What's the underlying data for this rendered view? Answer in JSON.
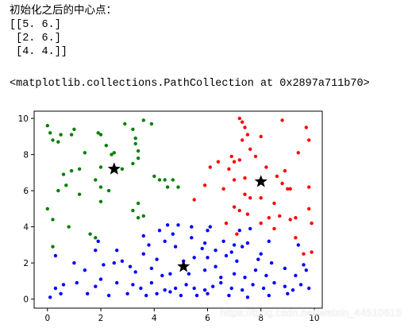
{
  "stdout": {
    "lines": [
      "初始化之后的中心点：",
      "[[5. 6.]",
      " [2. 6.]",
      " [4. 4.]]"
    ]
  },
  "repr_text": "<matplotlib.collections.PathCollection at 0x2897a711b70>",
  "watermark": "https://blog.csdn.net/weixin_44510615",
  "colors": {
    "green": "#008000",
    "red": "#ff0000",
    "blue": "#0000ff",
    "centroid": "#000000",
    "axes": "#000000"
  },
  "chart_data": {
    "type": "scatter",
    "title": "",
    "xlabel": "",
    "ylabel": "",
    "xlim": [
      -0.5,
      10.3
    ],
    "ylim": [
      -0.5,
      10.4
    ],
    "xticks": [
      0,
      2,
      4,
      6,
      8,
      10
    ],
    "yticks": [
      0,
      2,
      4,
      6,
      8,
      10
    ],
    "grid": false,
    "series": [
      {
        "color": "#008000",
        "points": [
          [
            0.0,
            9.6
          ],
          [
            0.1,
            9.2
          ],
          [
            0.2,
            8.8
          ],
          [
            0.4,
            8.7
          ],
          [
            0.5,
            9.1
          ],
          [
            0.9,
            9.1
          ],
          [
            1.0,
            9.4
          ],
          [
            1.4,
            8.1
          ],
          [
            1.9,
            9.2
          ],
          [
            2.0,
            9.1
          ],
          [
            2.2,
            8.5
          ],
          [
            2.4,
            8.0
          ],
          [
            2.5,
            8.1
          ],
          [
            2.9,
            9.7
          ],
          [
            3.2,
            9.4
          ],
          [
            3.3,
            8.9
          ],
          [
            3.4,
            8.2
          ],
          [
            3.6,
            9.9
          ],
          [
            3.9,
            9.7
          ],
          [
            3.3,
            8.6
          ],
          [
            3.4,
            7.8
          ],
          [
            0.6,
            6.9
          ],
          [
            0.9,
            7.1
          ],
          [
            1.2,
            7.2
          ],
          [
            2.0,
            7.3
          ],
          [
            2.8,
            7.2
          ],
          [
            3.2,
            7.5
          ],
          [
            0.4,
            6.0
          ],
          [
            0.7,
            6.3
          ],
          [
            1.2,
            5.8
          ],
          [
            1.8,
            6.6
          ],
          [
            2.0,
            6.2
          ],
          [
            2.3,
            6.0
          ],
          [
            2.0,
            5.4
          ],
          [
            3.4,
            5.3
          ],
          [
            4.0,
            6.8
          ],
          [
            4.2,
            6.6
          ],
          [
            4.4,
            6.6
          ],
          [
            4.5,
            6.2
          ],
          [
            4.7,
            6.6
          ],
          [
            4.9,
            6.2
          ],
          [
            3.2,
            4.9
          ],
          [
            3.4,
            4.5
          ],
          [
            3.6,
            4.6
          ],
          [
            0.0,
            5.0
          ],
          [
            0.2,
            4.4
          ],
          [
            0.8,
            4.0
          ],
          [
            1.6,
            3.6
          ],
          [
            1.8,
            3.4
          ],
          [
            0.2,
            2.9
          ]
        ]
      },
      {
        "color": "#ff0000",
        "points": [
          [
            7.2,
            10.0
          ],
          [
            7.3,
            9.8
          ],
          [
            7.4,
            9.5
          ],
          [
            7.5,
            9.1
          ],
          [
            8.0,
            9.0
          ],
          [
            8.8,
            9.9
          ],
          [
            9.7,
            9.5
          ],
          [
            9.8,
            8.8
          ],
          [
            7.3,
            8.8
          ],
          [
            7.6,
            8.3
          ],
          [
            9.4,
            8.1
          ],
          [
            6.4,
            7.6
          ],
          [
            6.9,
            7.9
          ],
          [
            7.0,
            7.6
          ],
          [
            7.2,
            7.7
          ],
          [
            7.8,
            7.9
          ],
          [
            8.2,
            7.3
          ],
          [
            8.9,
            7.1
          ],
          [
            6.1,
            7.3
          ],
          [
            6.8,
            7.2
          ],
          [
            7.0,
            6.6
          ],
          [
            7.4,
            6.7
          ],
          [
            8.6,
            6.8
          ],
          [
            8.8,
            6.4
          ],
          [
            9.0,
            6.1
          ],
          [
            9.1,
            6.1
          ],
          [
            9.8,
            6.2
          ],
          [
            5.9,
            6.3
          ],
          [
            6.6,
            6.1
          ],
          [
            7.4,
            5.8
          ],
          [
            7.6,
            5.6
          ],
          [
            8.0,
            5.6
          ],
          [
            8.5,
            5.3
          ],
          [
            9.8,
            5.0
          ],
          [
            5.5,
            5.5
          ],
          [
            7.0,
            5.1
          ],
          [
            7.2,
            4.9
          ],
          [
            7.5,
            4.7
          ],
          [
            8.3,
            4.5
          ],
          [
            8.7,
            4.6
          ],
          [
            9.1,
            4.4
          ],
          [
            9.3,
            4.5
          ],
          [
            6.7,
            4.2
          ],
          [
            8.0,
            4.2
          ],
          [
            9.9,
            4.2
          ],
          [
            7.1,
            3.6
          ],
          [
            8.5,
            3.9
          ],
          [
            9.3,
            3.4
          ],
          [
            9.6,
            2.5
          ],
          [
            9.9,
            2.6
          ]
        ]
      },
      {
        "color": "#0000ff",
        "points": [
          [
            4.5,
            4.1
          ],
          [
            4.9,
            4.1
          ],
          [
            5.4,
            4.0
          ],
          [
            6.0,
            3.8
          ],
          [
            6.1,
            4.0
          ],
          [
            7.2,
            3.8
          ],
          [
            7.6,
            3.9
          ],
          [
            3.6,
            3.5
          ],
          [
            4.2,
            3.8
          ],
          [
            4.7,
            3.6
          ],
          [
            5.4,
            3.4
          ],
          [
            6.6,
            3.2
          ],
          [
            5.9,
            3.1
          ],
          [
            7.0,
            3.0
          ],
          [
            7.5,
            3.1
          ],
          [
            8.3,
            3.2
          ],
          [
            0.3,
            2.4
          ],
          [
            1.9,
            3.2
          ],
          [
            3.8,
            3.0
          ],
          [
            4.4,
            3.2
          ],
          [
            4.8,
            2.9
          ],
          [
            5.8,
            2.8
          ],
          [
            6.3,
            2.7
          ],
          [
            6.9,
            2.6
          ],
          [
            7.3,
            2.9
          ],
          [
            8.0,
            2.5
          ],
          [
            9.4,
            3.0
          ],
          [
            1.8,
            2.7
          ],
          [
            2.6,
            2.7
          ],
          [
            3.6,
            2.5
          ],
          [
            4.1,
            2.2
          ],
          [
            5.1,
            2.1
          ],
          [
            5.5,
            2.3
          ],
          [
            6.0,
            2.3
          ],
          [
            6.7,
            2.4
          ],
          [
            7.1,
            2.1
          ],
          [
            7.9,
            2.2
          ],
          [
            8.4,
            2.0
          ],
          [
            9.6,
            1.9
          ],
          [
            1.0,
            2.0
          ],
          [
            1.4,
            1.6
          ],
          [
            2.1,
            1.9
          ],
          [
            2.5,
            2.0
          ],
          [
            2.8,
            2.1
          ],
          [
            3.1,
            1.8
          ],
          [
            3.3,
            1.5
          ],
          [
            3.9,
            1.7
          ],
          [
            4.3,
            1.3
          ],
          [
            4.6,
            1.4
          ],
          [
            5.3,
            1.4
          ],
          [
            5.9,
            1.6
          ],
          [
            6.3,
            1.8
          ],
          [
            6.5,
            1.2
          ],
          [
            7.0,
            1.4
          ],
          [
            7.4,
            1.2
          ],
          [
            7.8,
            1.6
          ],
          [
            8.2,
            1.3
          ],
          [
            8.9,
            1.7
          ],
          [
            9.3,
            1.3
          ],
          [
            9.7,
            1.6
          ],
          [
            0.3,
            0.6
          ],
          [
            0.6,
            0.8
          ],
          [
            1.1,
            0.9
          ],
          [
            1.8,
            0.7
          ],
          [
            2.0,
            1.1
          ],
          [
            2.6,
            0.9
          ],
          [
            3.2,
            0.8
          ],
          [
            3.5,
            0.6
          ],
          [
            3.9,
            0.9
          ],
          [
            4.4,
            0.5
          ],
          [
            4.6,
            0.4
          ],
          [
            4.8,
            0.6
          ],
          [
            5.2,
            0.8
          ],
          [
            5.5,
            0.6
          ],
          [
            5.9,
            0.5
          ],
          [
            6.2,
            0.7
          ],
          [
            6.5,
            0.9
          ],
          [
            6.9,
            0.6
          ],
          [
            7.3,
            0.5
          ],
          [
            7.7,
            0.8
          ],
          [
            8.1,
            0.6
          ],
          [
            8.5,
            0.9
          ],
          [
            8.9,
            0.7
          ],
          [
            9.2,
            0.5
          ],
          [
            9.5,
            0.8
          ],
          [
            9.8,
            0.6
          ],
          [
            0.1,
            0.1
          ],
          [
            0.5,
            0.3
          ],
          [
            1.5,
            0.3
          ],
          [
            2.3,
            0.2
          ],
          [
            3.0,
            0.3
          ],
          [
            3.7,
            0.2
          ],
          [
            4.1,
            0.3
          ],
          [
            5.0,
            0.2
          ],
          [
            5.6,
            0.2
          ],
          [
            6.0,
            0.3
          ],
          [
            6.8,
            0.2
          ],
          [
            7.5,
            0.1
          ],
          [
            8.3,
            0.2
          ],
          [
            9.0,
            0.3
          ]
        ]
      }
    ],
    "centroids": [
      [
        2.5,
        7.2
      ],
      [
        8.0,
        6.5
      ],
      [
        5.1,
        1.8
      ]
    ]
  }
}
